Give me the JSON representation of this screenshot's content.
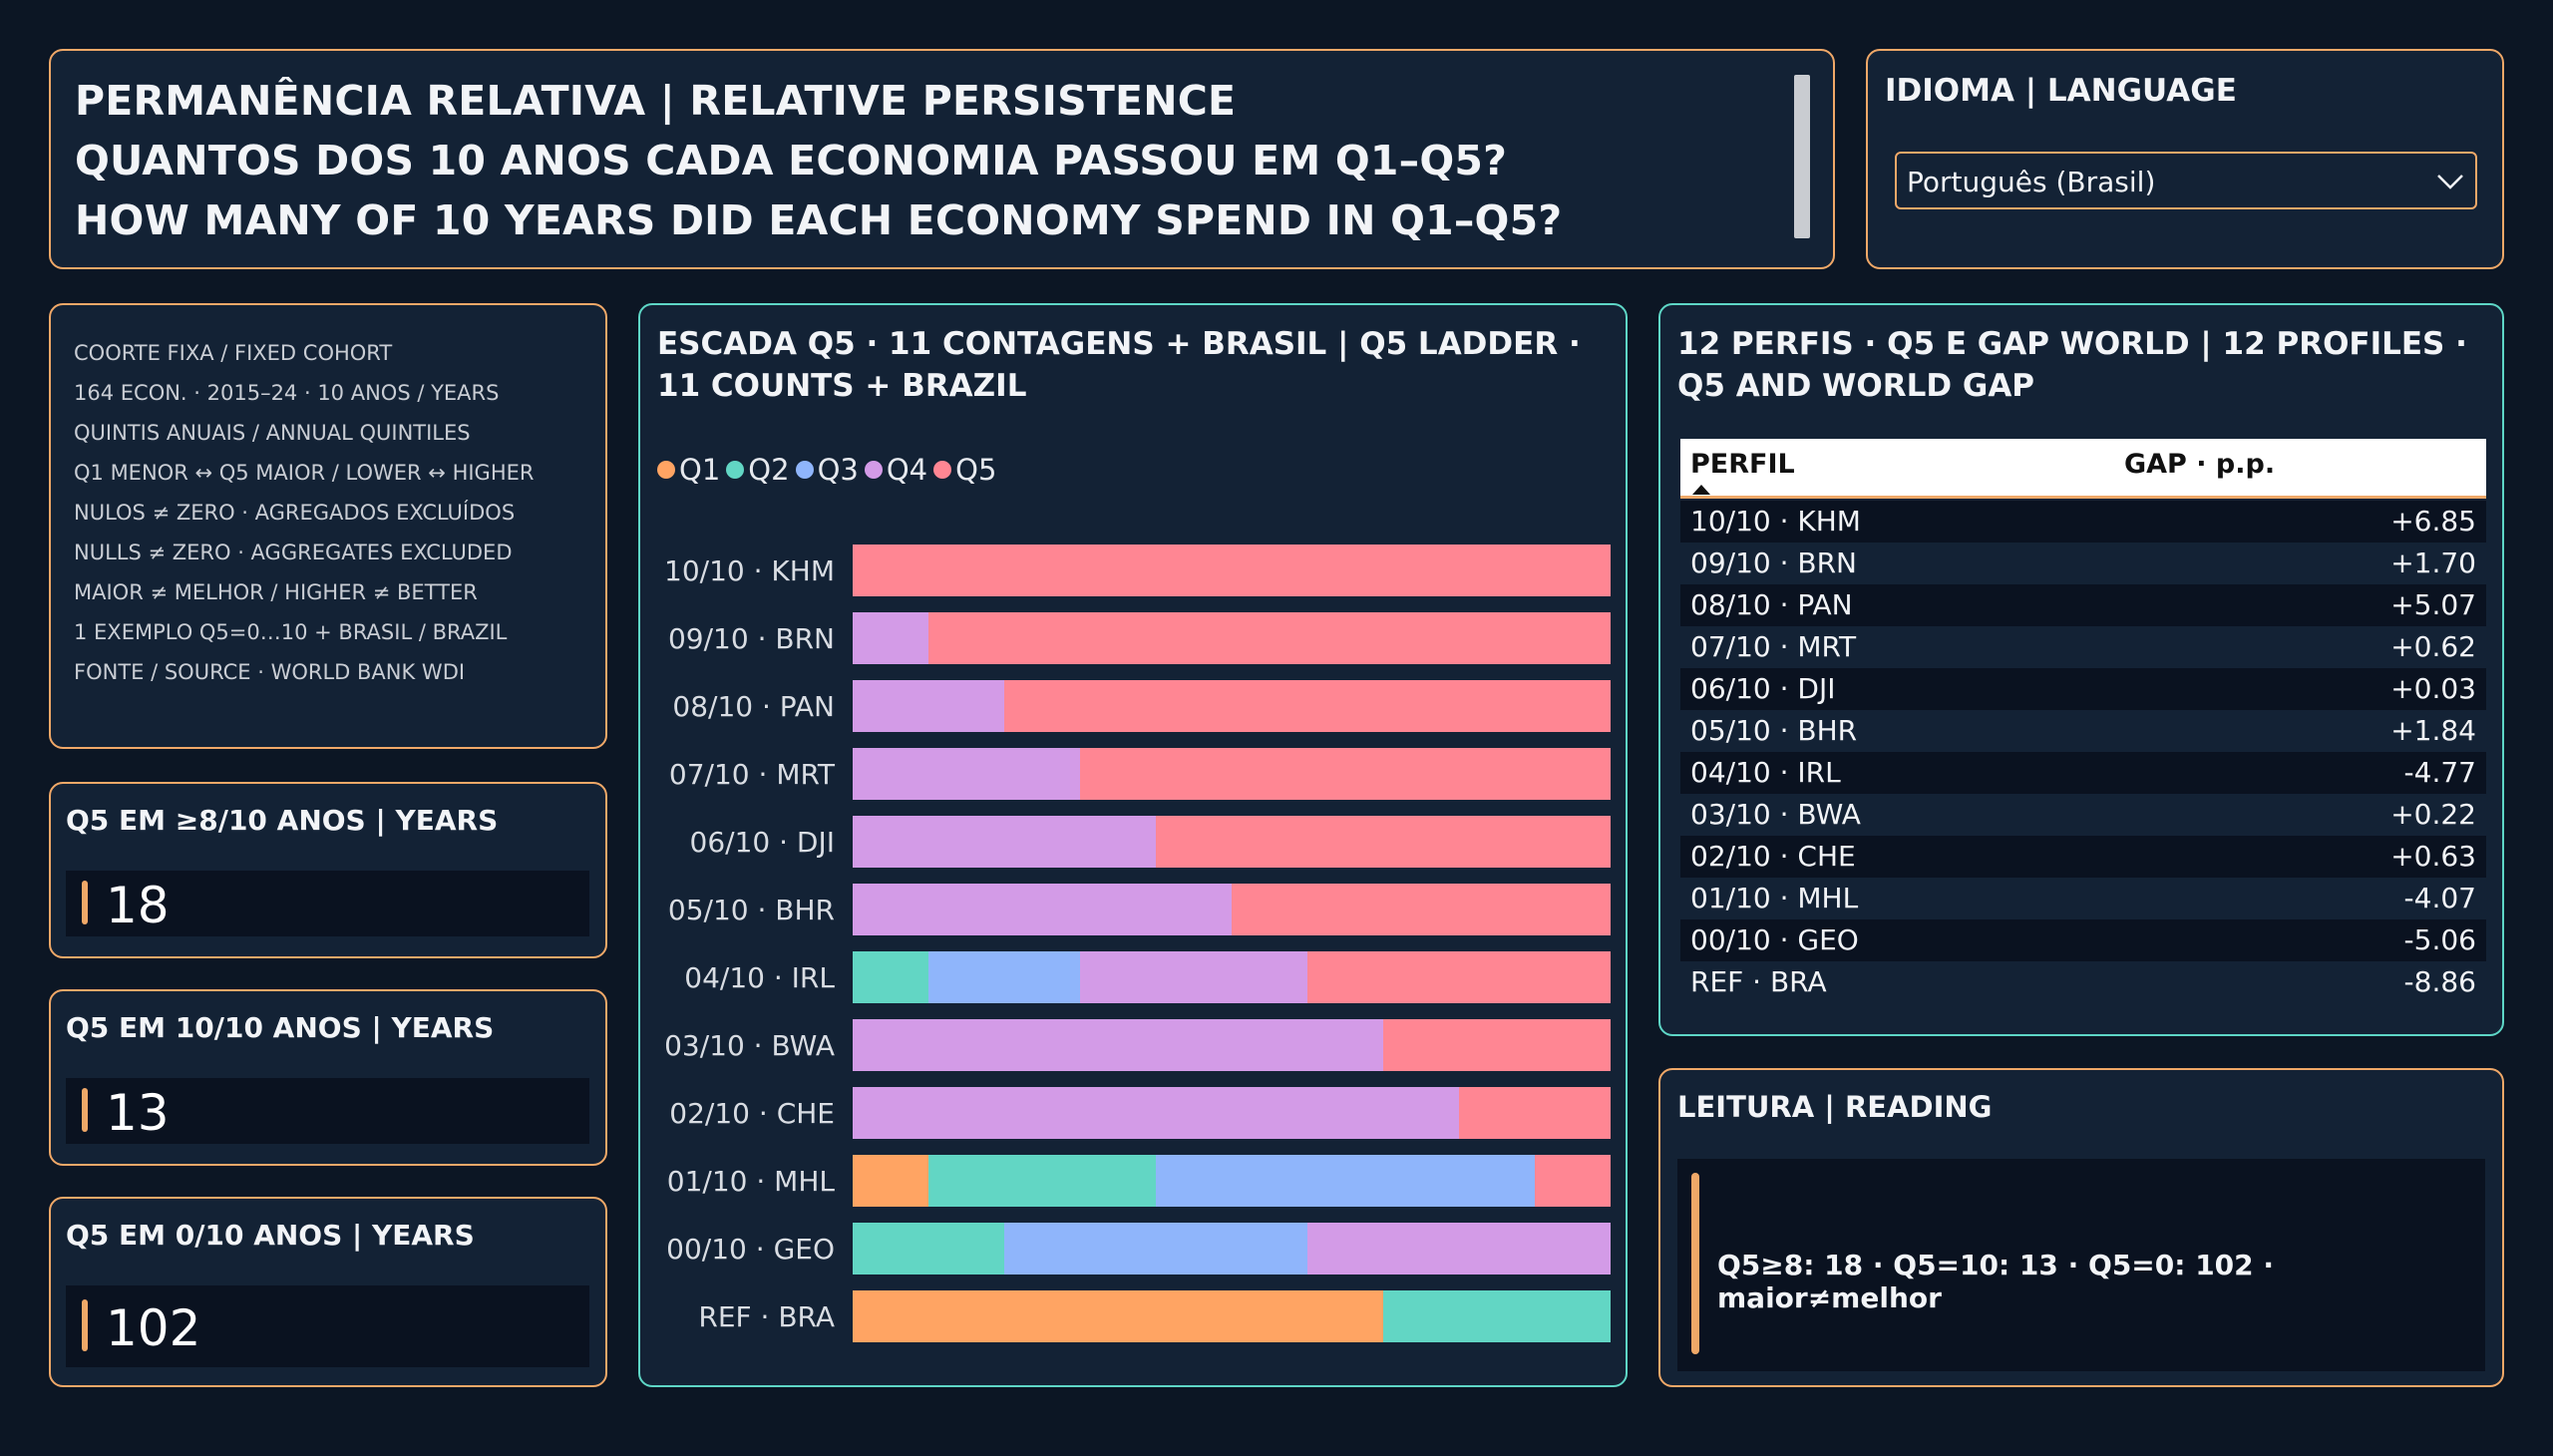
{
  "header": {
    "lines": [
      "PERMANÊNCIA RELATIVA | RELATIVE PERSISTENCE",
      "QUANTOS DOS 10 ANOS CADA ECONOMIA PASSOU EM Q1–Q5?",
      "HOW MANY OF 10 YEARS DID EACH ECONOMY SPEND IN Q1–Q5?"
    ]
  },
  "language": {
    "title": "IDIOMA | LANGUAGE",
    "selected": "Português (Brasil)",
    "icon": "chevron-down-icon"
  },
  "notes": [
    "COORTE FIXA / FIXED COHORT",
    "164 ECON. · 2015–24 · 10 ANOS / YEARS",
    "QUINTIS ANUAIS / ANNUAL QUINTILES",
    "Q1 MENOR ↔ Q5 MAIOR / LOWER ↔ HIGHER",
    "NULOS ≠ ZERO · AGREGADOS EXCLUÍDOS",
    "NULLS ≠ ZERO · AGGREGATES EXCLUDED",
    "MAIOR ≠ MELHOR / HIGHER ≠ BETTER",
    "1 EXEMPLO Q5=0…10 + BRASIL / BRAZIL",
    "FONTE / SOURCE · WORLD BANK WDI"
  ],
  "kpis": [
    {
      "title": "Q5 EM ≥8/10 ANOS | YEARS",
      "value": "18"
    },
    {
      "title": "Q5 EM 10/10 ANOS | YEARS",
      "value": "13"
    },
    {
      "title": "Q5 EM 0/10 ANOS | YEARS",
      "value": "102"
    }
  ],
  "colors": {
    "Q1": "#ffa463",
    "Q2": "#62d6c4",
    "Q3": "#8fb5fb",
    "Q4": "#d39be7",
    "Q5": "#ff8693",
    "accent": "#f0a868",
    "teal_border": "#5ed6c6"
  },
  "chart_data": {
    "type": "bar",
    "orientation": "horizontal",
    "stacked": true,
    "title": "ESCADA Q5 · 11 CONTAGENS + BRASIL | Q5 LADDER · 11 COUNTS + BRAZIL",
    "xlim": [
      0,
      10
    ],
    "legend_position": "top-left",
    "categories": [
      "10/10 · KHM",
      "09/10 · BRN",
      "08/10 · PAN",
      "07/10 · MRT",
      "06/10 · DJI",
      "05/10 · BHR",
      "04/10 · IRL",
      "03/10 · BWA",
      "02/10 · CHE",
      "01/10 · MHL",
      "00/10 · GEO",
      "REF · BRA"
    ],
    "series": [
      {
        "name": "Q1",
        "values": [
          0,
          0,
          0,
          0,
          0,
          0,
          0,
          0,
          0,
          1,
          0,
          7
        ]
      },
      {
        "name": "Q2",
        "values": [
          0,
          0,
          0,
          0,
          0,
          0,
          1,
          0,
          0,
          3,
          2,
          3
        ]
      },
      {
        "name": "Q3",
        "values": [
          0,
          0,
          0,
          0,
          0,
          0,
          2,
          0,
          0,
          5,
          4,
          0
        ]
      },
      {
        "name": "Q4",
        "values": [
          0,
          1,
          2,
          3,
          4,
          5,
          3,
          7,
          8,
          0,
          4,
          0
        ]
      },
      {
        "name": "Q5",
        "values": [
          10,
          9,
          8,
          7,
          6,
          5,
          4,
          3,
          2,
          1,
          0,
          0
        ]
      }
    ]
  },
  "table": {
    "title": "12 PERFIS · Q5 E GAP WORLD | 12 PROFILES · Q5 AND WORLD GAP",
    "col1": "PERFIL",
    "col2": "GAP · p.p.",
    "rows": [
      {
        "perfil": "10/10 · KHM",
        "gap": "+6.85"
      },
      {
        "perfil": "09/10 · BRN",
        "gap": "+1.70"
      },
      {
        "perfil": "08/10 · PAN",
        "gap": "+5.07"
      },
      {
        "perfil": "07/10 · MRT",
        "gap": "+0.62"
      },
      {
        "perfil": "06/10 · DJI",
        "gap": "+0.03"
      },
      {
        "perfil": "05/10 · BHR",
        "gap": "+1.84"
      },
      {
        "perfil": "04/10 · IRL",
        "gap": "-4.77"
      },
      {
        "perfil": "03/10 · BWA",
        "gap": "+0.22"
      },
      {
        "perfil": "02/10 · CHE",
        "gap": "+0.63"
      },
      {
        "perfil": "01/10 · MHL",
        "gap": "-4.07"
      },
      {
        "perfil": "00/10 · GEO",
        "gap": "-5.06"
      },
      {
        "perfil": "REF · BRA",
        "gap": "-8.86"
      }
    ]
  },
  "reading": {
    "title": "LEITURA | READING",
    "text": "Q5≥8: 18 · Q5=10: 13 · Q5=0: 102 · maior≠melhor"
  }
}
